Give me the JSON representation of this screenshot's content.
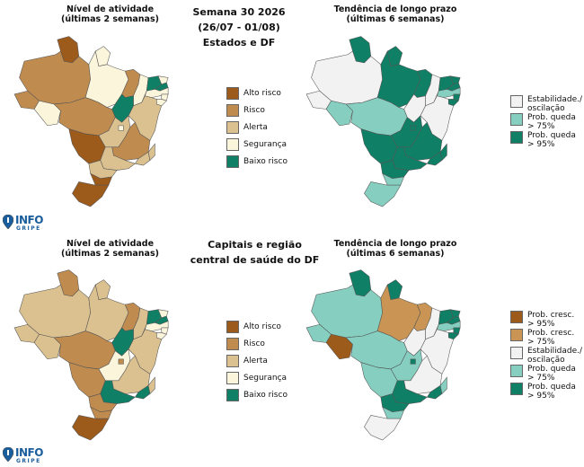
{
  "header": {
    "line1": "Semana 30 2026",
    "line2": "(26/07 - 01/08)",
    "line3": "Estados e DF",
    "bottom_line1": "Capitais e região",
    "bottom_line2": "central de saúde do DF"
  },
  "map_titles": {
    "activity_1": "Nível de atividade",
    "activity_2": "(últimas 2 semanas)",
    "trend_1": "Tendência de longo prazo",
    "trend_2": "(últimas 6 semanas)"
  },
  "colors": {
    "alto_risco": "#9c5a1b",
    "risco": "#c08b4f",
    "alerta": "#dcc190",
    "seguranca": "#fbf5db",
    "baixo_risco": "#0f7f66",
    "prob_cresc_95": "#9c5a1b",
    "prob_cresc_75": "#c99454",
    "estabilidade": "#f2f2f2",
    "prob_queda_75": "#86cfc0",
    "prob_queda_95": "#0f7f66"
  },
  "activity_legend": [
    {
      "label": "Alto risco",
      "color": "#9c5a1b"
    },
    {
      "label": "Risco",
      "color": "#c08b4f"
    },
    {
      "label": "Alerta",
      "color": "#dcc190"
    },
    {
      "label": "Segurança",
      "color": "#fbf5db"
    },
    {
      "label": "Baixo risco",
      "color": "#0f7f66"
    }
  ],
  "trend_legend_top": [
    {
      "label1": "Estabilidade./",
      "label2": "oscilação",
      "color": "#f2f2f2"
    },
    {
      "label1": "Prob. queda",
      "label2": "> 75%",
      "color": "#86cfc0"
    },
    {
      "label1": "Prob. queda",
      "label2": "> 95%",
      "color": "#0f7f66"
    }
  ],
  "trend_legend_bottom": [
    {
      "label1": "Prob. cresc.",
      "label2": "> 95%",
      "color": "#9c5a1b"
    },
    {
      "label1": "Prob. cresc.",
      "label2": "> 75%",
      "color": "#c99454"
    },
    {
      "label1": "Estabilidade./",
      "label2": "oscilação",
      "color": "#f2f2f2"
    },
    {
      "label1": "Prob. queda",
      "label2": "> 75%",
      "color": "#86cfc0"
    },
    {
      "label1": "Prob. queda",
      "label2": "> 95%",
      "color": "#0f7f66"
    }
  ],
  "logo": {
    "big": "INFO",
    "small": "GRIPE"
  },
  "maps": {
    "states_activity": {
      "AC": "risco",
      "AM": "risco",
      "RR": "alto_risco",
      "AP": "seguranca",
      "PA": "seguranca",
      "RO": "seguranca",
      "MT": "risco",
      "TO": "baixo_risco",
      "MA": "risco",
      "PI": "seguranca",
      "CE": "baixo_risco",
      "RN": "seguranca",
      "PB": "baixo_risco",
      "PE": "seguranca",
      "AL": "seguranca",
      "SE": "seguranca",
      "BA": "alerta",
      "GO": "alerta",
      "DF": "seguranca",
      "MG": "risco",
      "ES": "alerta",
      "RJ": "alerta",
      "SP": "alerta",
      "MS": "alto_risco",
      "PR": "alerta",
      "SC": "alto_risco",
      "RS": "alto_risco"
    },
    "states_trend": {
      "AC": "estabilidade",
      "AM": "estabilidade",
      "RR": "prob_queda_95",
      "AP": "prob_queda_95",
      "PA": "prob_queda_95",
      "RO": "prob_queda_75",
      "MT": "prob_queda_75",
      "TO": "estabilidade",
      "MA": "prob_queda_95",
      "PI": "estabilidade",
      "CE": "prob_queda_95",
      "RN": "prob_queda_95",
      "PB": "prob_queda_95",
      "PE": "prob_queda_75",
      "AL": "prob_queda_95",
      "SE": "prob_queda_95",
      "BA": "estabilidade",
      "GO": "prob_queda_95",
      "DF": "prob_queda_95",
      "MG": "prob_queda_95",
      "ES": "prob_queda_95",
      "RJ": "prob_queda_95",
      "SP": "prob_queda_95",
      "MS": "prob_queda_95",
      "PR": "prob_queda_95",
      "SC": "prob_queda_75",
      "RS": "prob_queda_75"
    },
    "capitals_activity": {
      "AC": "alerta",
      "AM": "alerta",
      "RR": "risco",
      "AP": "alerta",
      "PA": "alerta",
      "RO": "alerta",
      "MT": "risco",
      "TO": "baixo_risco",
      "MA": "risco",
      "PI": "alerta",
      "CE": "baixo_risco",
      "RN": "seguranca",
      "PB": "baixo_risco",
      "PE": "seguranca",
      "AL": "seguranca",
      "SE": "seguranca",
      "BA": "alerta",
      "GO": "seguranca",
      "DF": "risco",
      "MG": "alerta",
      "ES": "alerta",
      "RJ": "baixo_risco",
      "SP": "baixo_risco",
      "MS": "risco",
      "PR": "risco",
      "SC": "risco",
      "RS": "alto_risco"
    },
    "capitals_trend": {
      "AC": "prob_queda_75",
      "AM": "prob_queda_75",
      "RR": "prob_queda_95",
      "AP": "prob_queda_95",
      "PA": "prob_cresc_75",
      "RO": "prob_cresc_95",
      "MT": "prob_queda_75",
      "TO": "estabilidade",
      "MA": "prob_cresc_75",
      "PI": "estabilidade",
      "CE": "prob_queda_95",
      "RN": "prob_queda_95",
      "PB": "prob_queda_95",
      "PE": "prob_queda_75",
      "AL": "prob_queda_95",
      "SE": "prob_queda_95",
      "BA": "estabilidade",
      "GO": "prob_queda_75",
      "DF": "prob_queda_95",
      "MG": "estabilidade",
      "ES": "prob_queda_75",
      "RJ": "prob_queda_95",
      "SP": "prob_queda_95",
      "MS": "prob_queda_75",
      "PR": "prob_queda_95",
      "SC": "prob_queda_75",
      "RS": "estabilidade"
    }
  }
}
